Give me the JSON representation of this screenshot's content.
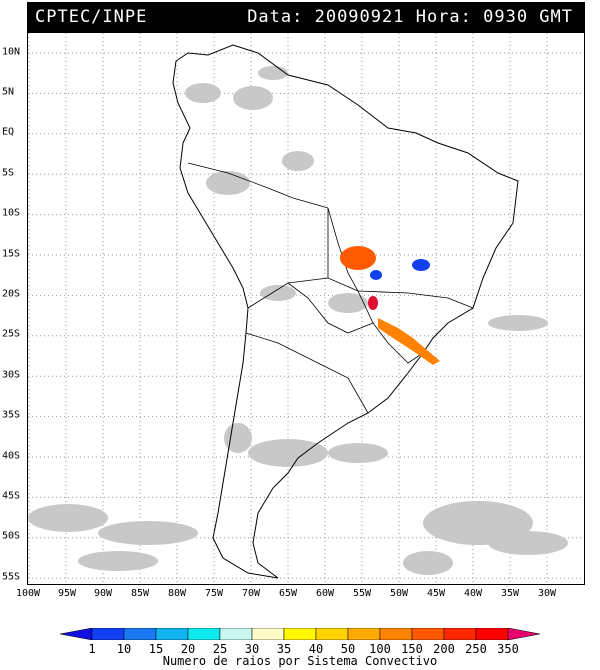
{
  "header": {
    "left": "CPTEC/INPE",
    "right": "Data: 20090921 Hora: 0930 GMT"
  },
  "map": {
    "lat_labels": [
      "10N",
      "5N",
      "EQ",
      "5S",
      "10S",
      "15S",
      "20S",
      "25S",
      "30S",
      "35S",
      "40S",
      "45S",
      "50S",
      "55S"
    ],
    "lon_labels": [
      "100W",
      "95W",
      "90W",
      "85W",
      "80W",
      "75W",
      "70W",
      "65W",
      "60W",
      "55W",
      "50W",
      "45W",
      "40W",
      "35W",
      "30W"
    ],
    "cloud_color": "#c8c8c8"
  },
  "colorbar": {
    "labels": [
      "1",
      "10",
      "15",
      "20",
      "25",
      "30",
      "35",
      "40",
      "50",
      "100",
      "150",
      "200",
      "250",
      "350"
    ],
    "colors": [
      "#1010e0",
      "#1040f0",
      "#1a78f0",
      "#10b4f0",
      "#10e8f0",
      "#c8f8f0",
      "#fffcc8",
      "#fff800",
      "#ffd200",
      "#ffaa00",
      "#ff8200",
      "#ff5a00",
      "#ff2800",
      "#ff0000",
      "#e8006e"
    ],
    "caption": "Numero de raios por Sistema Convectivo"
  }
}
